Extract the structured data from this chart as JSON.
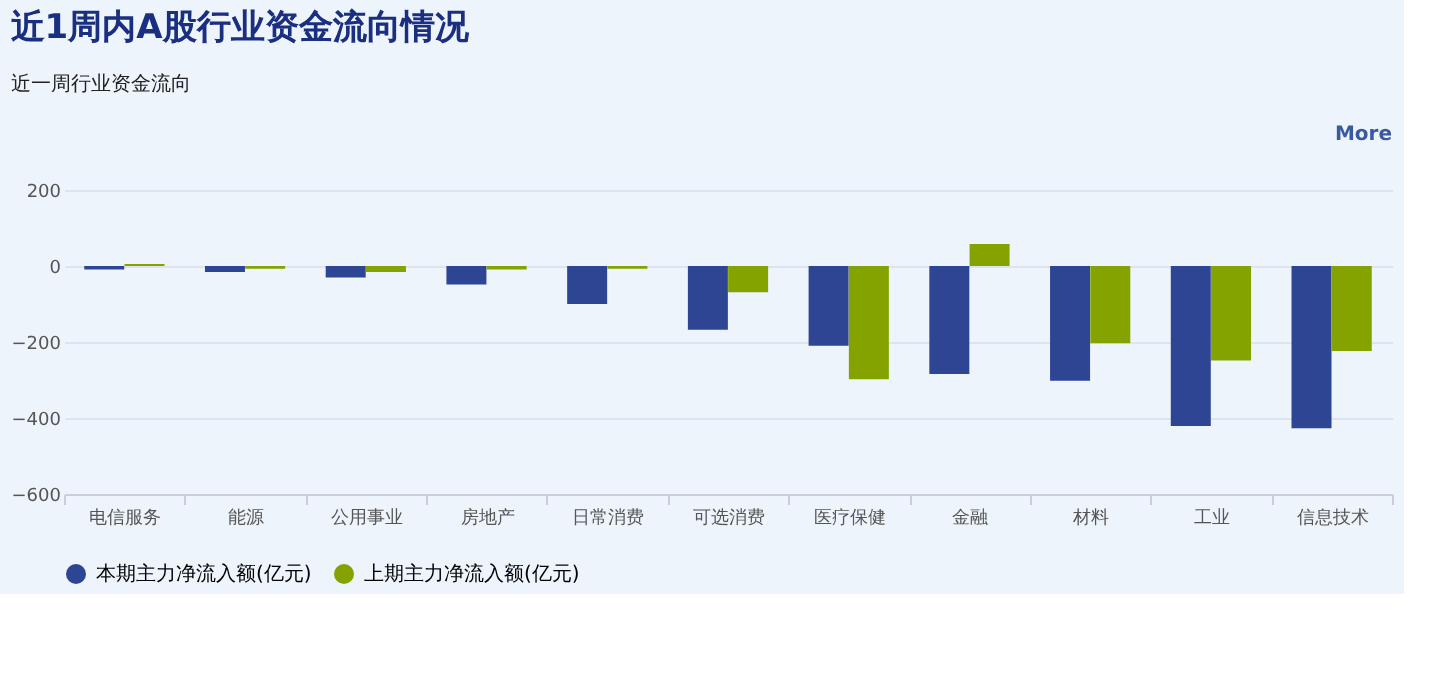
{
  "chart_data": {
    "type": "bar",
    "title": "近1周内A股行业资金流向情况",
    "subtitle": "近一周行业资金流向",
    "categories": [
      "电信服务",
      "能源",
      "公用事业",
      "房地产",
      "日常消费",
      "可选消费",
      "医疗保健",
      "金融",
      "材料",
      "工业",
      "信息技术"
    ],
    "series": [
      {
        "name": "本期主力净流入额(亿元)",
        "color": "#2e4593",
        "values": [
          -9,
          -16,
          -30,
          -49,
          -100,
          -168,
          -210,
          -284,
          -302,
          -421,
          -427
        ]
      },
      {
        "name": "上期主力净流入额(亿元)",
        "color": "#85a300",
        "values": [
          5,
          -7,
          -16,
          -9,
          -7,
          -69,
          -298,
          58,
          -203,
          -249,
          -224
        ]
      }
    ],
    "ylim": [
      -600,
      200
    ],
    "yticks": [
      -600,
      -400,
      -200,
      0,
      200
    ],
    "grid": "y",
    "legend": "bottom",
    "annotations": [
      "More"
    ]
  }
}
